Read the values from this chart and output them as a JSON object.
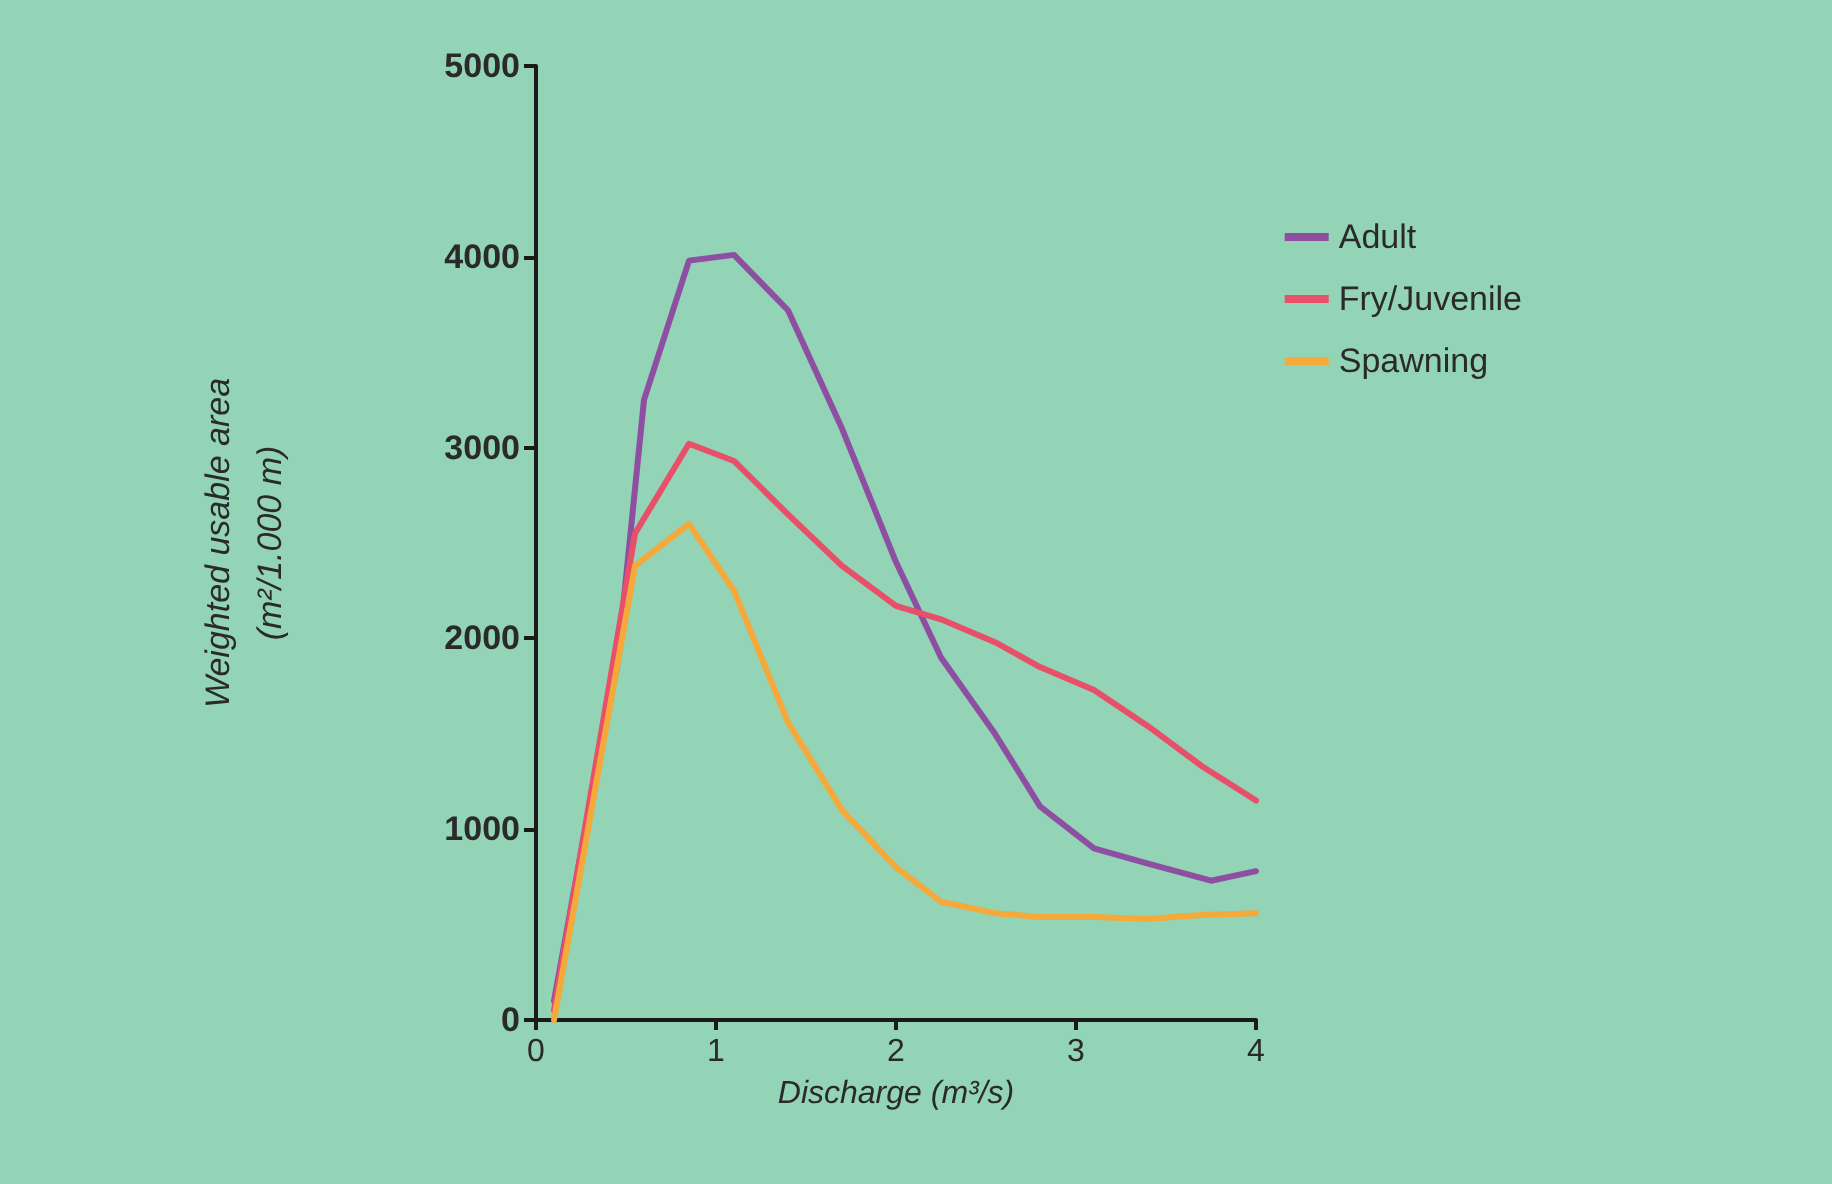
{
  "chart_data": {
    "type": "line",
    "xlabel": "Discharge (m³/s)",
    "ylabel": "Weighted usable area\n(m²/1.000 m)",
    "xlim": [
      0,
      4
    ],
    "xticks": [
      0,
      1,
      2,
      3,
      4
    ],
    "ylim": [
      0,
      5000
    ],
    "yticks": [
      0,
      1000,
      2000,
      3000,
      4000,
      5000
    ],
    "grid": false,
    "legend": "top right",
    "marker": "none",
    "line_style": "solid",
    "series": [
      {
        "name": "Adult",
        "color": "#8e4fa3",
        "x": [
          0.1,
          0.35,
          0.45,
          0.6,
          0.85,
          1.1,
          1.4,
          1.7,
          2.0,
          2.25,
          2.55,
          2.8,
          3.1,
          3.4,
          3.75,
          4.0
        ],
        "values": [
          100,
          1400,
          1850,
          3250,
          3980,
          4010,
          3720,
          3100,
          2400,
          1900,
          1500,
          1120,
          900,
          820,
          730,
          780
        ]
      },
      {
        "name": "Fry/Juvenile",
        "color": "#e8506a",
        "x": [
          0.1,
          0.55,
          0.85,
          1.1,
          1.4,
          1.7,
          2.0,
          2.25,
          2.55,
          2.8,
          3.1,
          3.4,
          3.7,
          4.0
        ],
        "values": [
          50,
          2550,
          3020,
          2930,
          2650,
          2380,
          2170,
          2100,
          1980,
          1850,
          1730,
          1540,
          1330,
          1150
        ]
      },
      {
        "name": "Spawning",
        "color": "#f5a93a",
        "x": [
          0.1,
          0.55,
          0.85,
          1.1,
          1.4,
          1.7,
          2.0,
          2.25,
          2.55,
          2.8,
          3.1,
          3.4,
          3.7,
          4.0
        ],
        "values": [
          0,
          2380,
          2600,
          2250,
          1560,
          1100,
          800,
          620,
          560,
          540,
          540,
          530,
          550,
          560
        ]
      }
    ]
  }
}
